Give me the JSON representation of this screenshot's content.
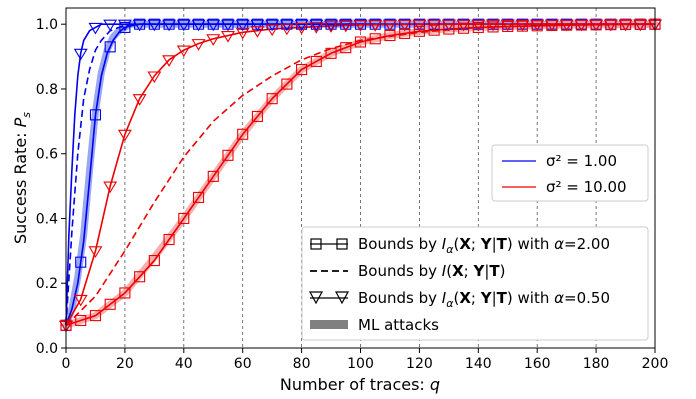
{
  "chart_data": {
    "type": "line",
    "xlabel": "Number of traces: q",
    "ylabel": "Success Rate: Ps",
    "xlim": [
      0,
      200
    ],
    "ylim": [
      0,
      1.05
    ],
    "x_ticks": [
      0,
      20,
      40,
      60,
      80,
      100,
      120,
      140,
      160,
      180,
      200
    ],
    "y_ticks": [
      0.0,
      0.2,
      0.4,
      0.6,
      0.8,
      1.0
    ],
    "x_tick_labels": [
      "0",
      "20",
      "40",
      "60",
      "80",
      "100",
      "120",
      "140",
      "160",
      "180",
      "200"
    ],
    "y_tick_labels": [
      "0.0",
      "0.2",
      "0.4",
      "0.6",
      "0.8",
      "1.0"
    ],
    "grid": "vertical dotted",
    "colors": {
      "low_noise": "#0000ee",
      "high_noise": "#ee0000",
      "ml_low": "#8899ee",
      "ml_high": "#f4a0a0"
    },
    "noise_legend": {
      "placement": "right",
      "entries": [
        {
          "label": "σ² = 1.00",
          "color": "#0000ee"
        },
        {
          "label": "σ² = 10.00",
          "color": "#ee0000"
        }
      ]
    },
    "style_legend": {
      "placement": "bottom-right",
      "entries": [
        {
          "label": "Bounds by Iα(X; Y|T) with α=2.00",
          "style": "square-markers"
        },
        {
          "label": "Bounds by I(X; Y|T)",
          "style": "dashed"
        },
        {
          "label": "Bounds by Iα(X; Y|T) with α=0.50",
          "style": "triangle-markers"
        },
        {
          "label": "ML attacks",
          "style": "thick-band"
        }
      ]
    },
    "series": [
      {
        "noise": "σ² = 1.00",
        "kind": "alpha_0.50",
        "color": "#0000ee",
        "marker": "triangle",
        "x": [
          0,
          1,
          2,
          3,
          4,
          5,
          6,
          8,
          10,
          12,
          15,
          20,
          30,
          50,
          200
        ],
        "y": [
          0.07,
          0.35,
          0.55,
          0.72,
          0.84,
          0.91,
          0.95,
          0.98,
          0.99,
          1.0,
          1.0,
          1.0,
          1.0,
          1.0,
          1.0
        ]
      },
      {
        "noise": "σ² = 1.00",
        "kind": "shannon",
        "color": "#0000ee",
        "dash": true,
        "x": [
          0,
          2,
          4,
          6,
          8,
          10,
          12,
          15,
          18,
          20,
          25,
          30,
          40,
          200
        ],
        "y": [
          0.07,
          0.36,
          0.6,
          0.77,
          0.86,
          0.92,
          0.95,
          0.98,
          0.99,
          0.995,
          1.0,
          1.0,
          1.0,
          1.0
        ]
      },
      {
        "noise": "σ² = 1.00",
        "kind": "alpha_2.00",
        "color": "#0000ee",
        "marker": "square",
        "x": [
          0,
          2,
          4,
          6,
          8,
          10,
          12,
          14,
          16,
          18,
          20,
          22,
          25,
          30,
          40,
          200
        ],
        "y": [
          0.07,
          0.12,
          0.2,
          0.33,
          0.52,
          0.72,
          0.84,
          0.91,
          0.95,
          0.975,
          0.99,
          0.995,
          1.0,
          1.0,
          1.0,
          1.0
        ]
      },
      {
        "noise": "σ² = 1.00",
        "kind": "ml",
        "color": "#8899ee",
        "band": true,
        "x": [
          0,
          2,
          4,
          6,
          8,
          10,
          12,
          14,
          16,
          18,
          20,
          22,
          25,
          30,
          200
        ],
        "y": [
          0.07,
          0.12,
          0.22,
          0.35,
          0.55,
          0.73,
          0.85,
          0.92,
          0.96,
          0.98,
          0.99,
          1.0,
          1.0,
          1.0,
          1.0
        ]
      },
      {
        "noise": "σ² = 10.00",
        "kind": "alpha_0.50",
        "color": "#ee0000",
        "marker": "triangle",
        "x": [
          0,
          5,
          10,
          15,
          20,
          25,
          30,
          35,
          40,
          45,
          50,
          60,
          70,
          80,
          90,
          100,
          120,
          140,
          160,
          180,
          200
        ],
        "y": [
          0.07,
          0.15,
          0.3,
          0.5,
          0.66,
          0.77,
          0.84,
          0.89,
          0.92,
          0.94,
          0.955,
          0.975,
          0.985,
          0.99,
          0.995,
          0.998,
          1.0,
          1.0,
          1.0,
          1.0,
          1.0
        ]
      },
      {
        "noise": "σ² = 10.00",
        "kind": "shannon",
        "color": "#ee0000",
        "dash": true,
        "x": [
          0,
          10,
          20,
          30,
          40,
          50,
          60,
          70,
          80,
          90,
          100,
          120,
          140,
          160,
          180,
          200
        ],
        "y": [
          0.07,
          0.16,
          0.3,
          0.45,
          0.59,
          0.7,
          0.78,
          0.84,
          0.89,
          0.925,
          0.95,
          0.975,
          0.99,
          0.995,
          1.0,
          1.0
        ]
      },
      {
        "noise": "σ² = 10.00",
        "kind": "alpha_2.00",
        "color": "#ee0000",
        "marker": "square",
        "x": [
          0,
          10,
          20,
          30,
          40,
          50,
          60,
          70,
          80,
          90,
          100,
          110,
          120,
          130,
          140,
          150,
          160,
          170,
          180,
          190,
          200
        ],
        "y": [
          0.07,
          0.1,
          0.17,
          0.27,
          0.4,
          0.53,
          0.66,
          0.77,
          0.86,
          0.91,
          0.945,
          0.965,
          0.978,
          0.985,
          0.99,
          0.993,
          0.995,
          0.997,
          0.998,
          0.999,
          1.0
        ]
      },
      {
        "noise": "σ² = 10.00",
        "kind": "ml",
        "color": "#f4a0a0",
        "band": true,
        "x": [
          0,
          10,
          20,
          30,
          40,
          50,
          60,
          70,
          80,
          90,
          100,
          110,
          120,
          130,
          140,
          150,
          160,
          170,
          180,
          190,
          200
        ],
        "y": [
          0.07,
          0.1,
          0.17,
          0.28,
          0.4,
          0.53,
          0.66,
          0.77,
          0.86,
          0.91,
          0.945,
          0.965,
          0.978,
          0.985,
          0.99,
          0.993,
          0.995,
          0.997,
          0.998,
          0.999,
          1.0
        ]
      }
    ]
  }
}
